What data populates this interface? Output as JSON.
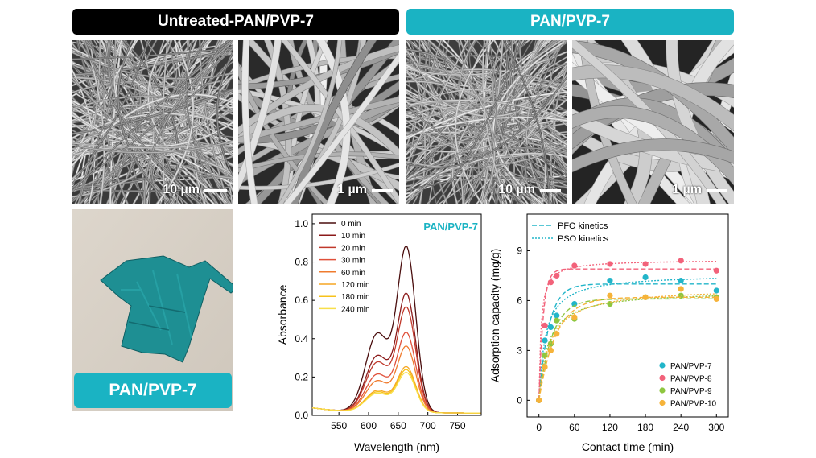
{
  "banners": {
    "left": "Untreated-PAN/PVP-7",
    "right": "PAN/PVP-7"
  },
  "sem_scalebars": [
    "10 µm",
    "1 µm",
    "10 µm",
    "1 µm"
  ],
  "photo_label": "PAN/PVP-7",
  "colors": {
    "teal": "#1ab3c3",
    "black": "#000000"
  },
  "chart_data": [
    {
      "type": "line",
      "annotation": "PAN/PVP-7",
      "xlabel": "Wavelength (nm)",
      "ylabel": "Absorbance",
      "xlim": [
        505,
        790
      ],
      "ylim": [
        0,
        1.05
      ],
      "xticks": [
        550,
        600,
        650,
        700,
        750
      ],
      "yticks": [
        0.0,
        0.2,
        0.4,
        0.6,
        0.8,
        1.0
      ],
      "legend_position": "top-left",
      "peak_wavelength": 664,
      "shoulder_wavelength": 615,
      "series": [
        {
          "name": "0 min",
          "peak": 0.85,
          "color": "#4a0e0e"
        },
        {
          "name": "10 min",
          "peak": 0.61,
          "color": "#8b1a1a"
        },
        {
          "name": "20 min",
          "peak": 0.54,
          "color": "#c0392b"
        },
        {
          "name": "30 min",
          "peak": 0.41,
          "color": "#e0503a"
        },
        {
          "name": "60 min",
          "peak": 0.34,
          "color": "#ef7b2e"
        },
        {
          "name": "120 min",
          "peak": 0.235,
          "color": "#f5a623"
        },
        {
          "name": "180 min",
          "peak": 0.22,
          "color": "#f7c21b"
        },
        {
          "name": "240 min",
          "peak": 0.205,
          "color": "#f8df4a"
        }
      ]
    },
    {
      "type": "scatter",
      "xlabel": "Contact time (min)",
      "ylabel": "Adsorption capacity (mg/g)",
      "xlim": [
        -20,
        320
      ],
      "ylim": [
        -1,
        11.2
      ],
      "xticks": [
        0,
        60,
        120,
        180,
        240,
        300
      ],
      "yticks": [
        0,
        3,
        6,
        9
      ],
      "legend_position": "bottom-right",
      "fit_legend": [
        "PFO kinetics",
        "PSO kinetics"
      ],
      "x": [
        0,
        10,
        20,
        30,
        60,
        120,
        180,
        240,
        300
      ],
      "series": [
        {
          "name": "PAN/PVP-7",
          "color": "#22b5c9",
          "values": [
            0,
            3.6,
            4.4,
            5.1,
            5.8,
            7.2,
            7.4,
            7.2,
            6.6
          ],
          "pfo": {
            "qe": 7.0,
            "k": 0.06
          },
          "pso": {
            "qe": 7.6,
            "k": 0.012
          }
        },
        {
          "name": "PAN/PVP-8",
          "color": "#f2627a",
          "values": [
            0,
            4.5,
            7.1,
            7.5,
            8.1,
            8.2,
            8.2,
            8.4,
            7.8
          ],
          "pfo": {
            "qe": 7.9,
            "k": 0.14
          },
          "pso": {
            "qe": 8.45,
            "k": 0.035
          }
        },
        {
          "name": "PAN/PVP-9",
          "color": "#8ec63f",
          "values": [
            0,
            2.7,
            3.4,
            4.8,
            4.9,
            5.8,
            6.2,
            6.3,
            6.2
          ],
          "pfo": {
            "qe": 6.1,
            "k": 0.045
          },
          "pso": {
            "qe": 6.6,
            "k": 0.01
          }
        },
        {
          "name": "PAN/PVP-10",
          "color": "#f6b33a",
          "values": [
            0,
            2.0,
            3.0,
            4.0,
            5.0,
            6.3,
            6.2,
            6.7,
            6.1
          ],
          "pfo": {
            "qe": 6.2,
            "k": 0.035
          },
          "pso": {
            "qe": 6.8,
            "k": 0.008
          }
        }
      ]
    }
  ]
}
